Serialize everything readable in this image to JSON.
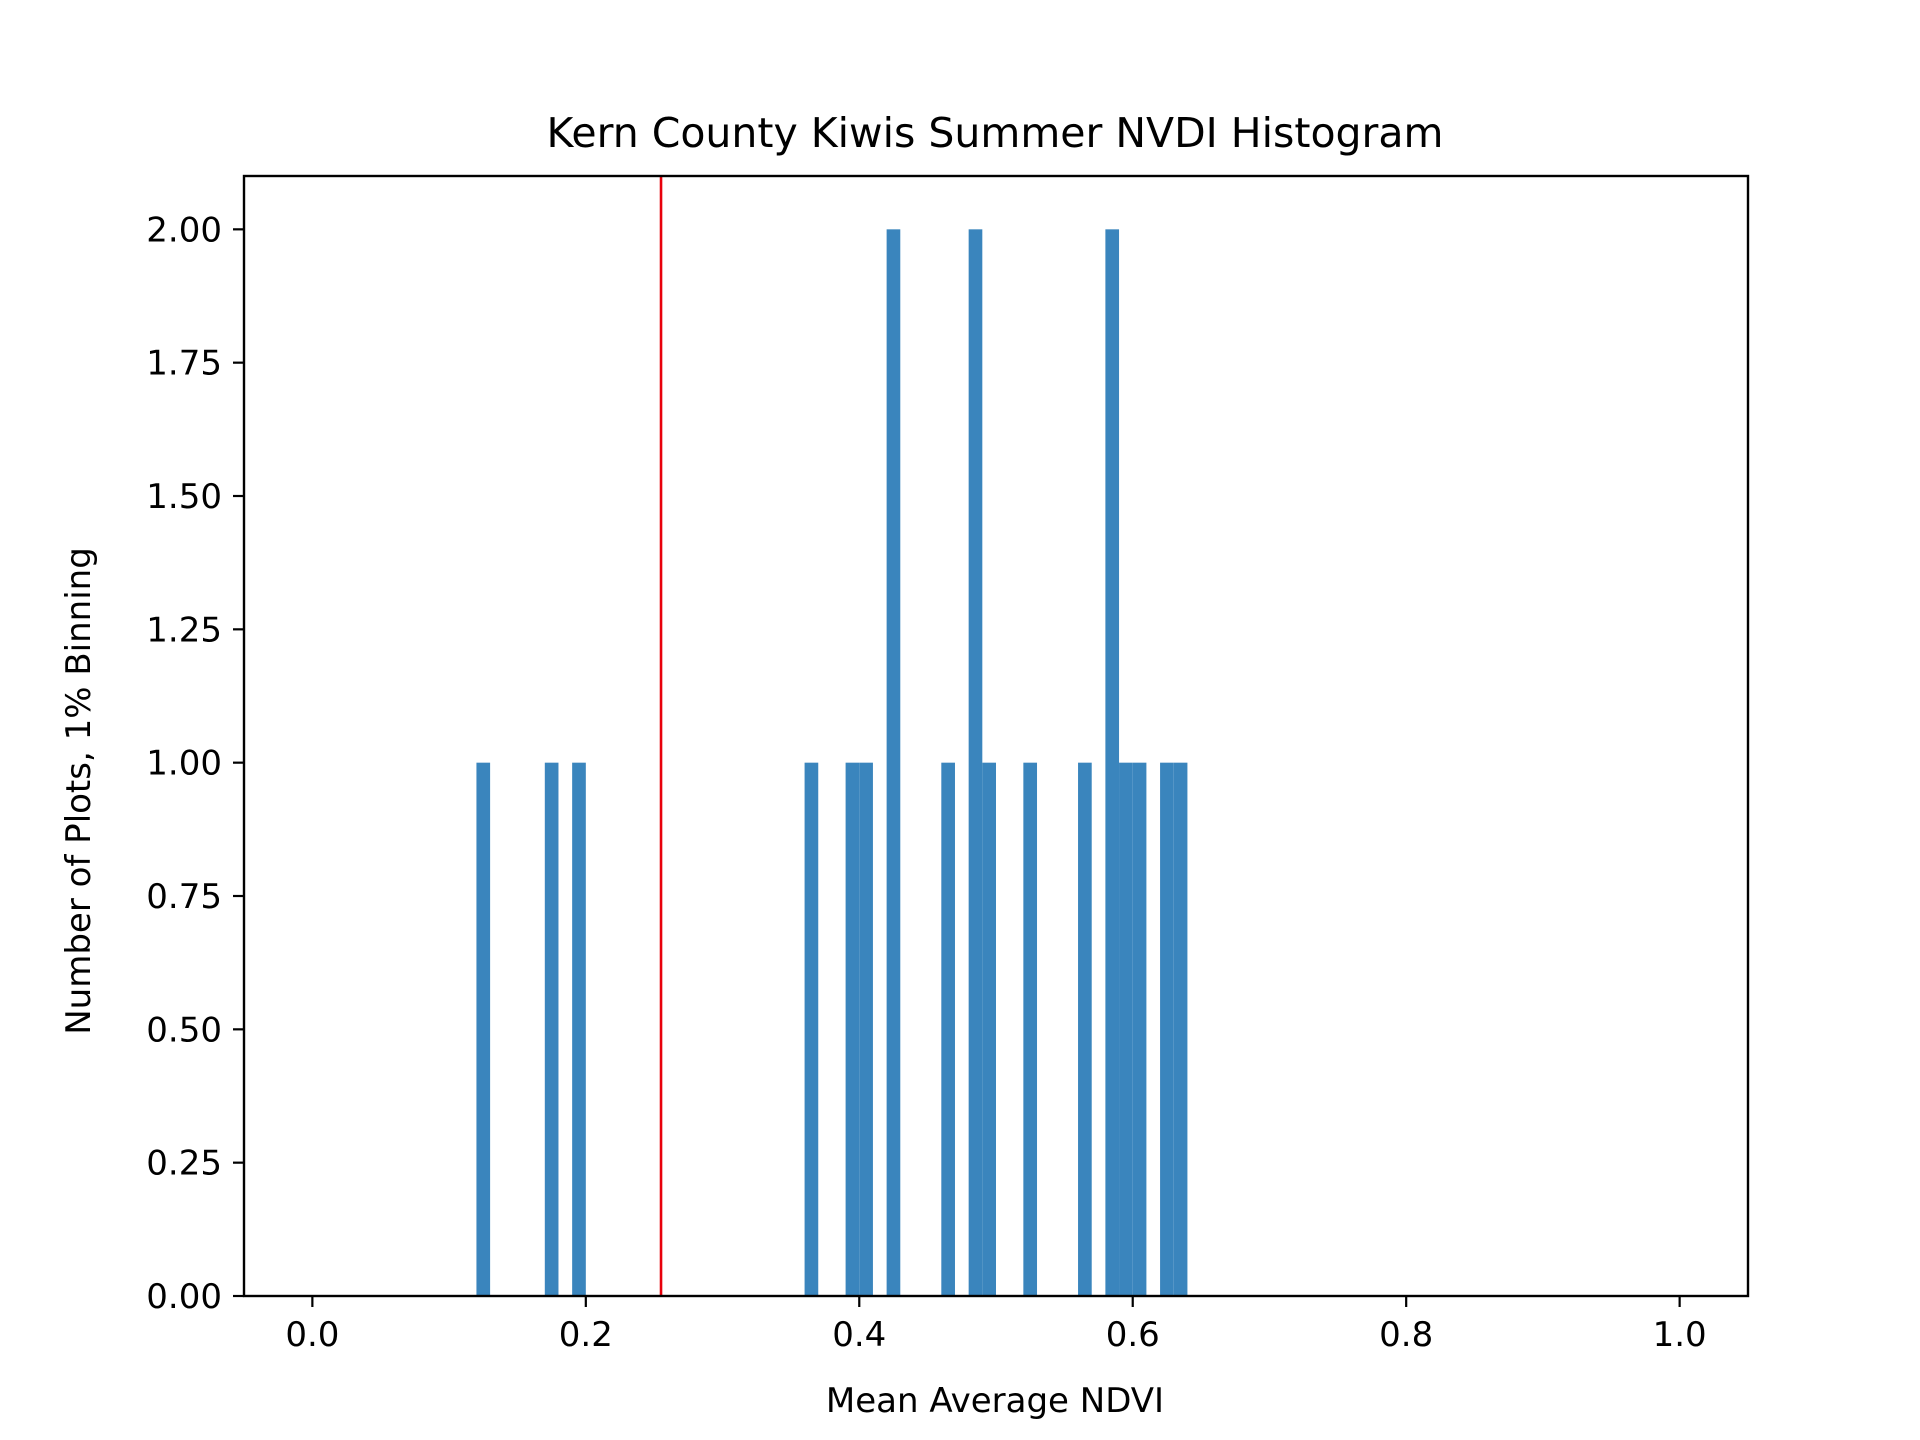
{
  "chart_data": {
    "type": "bar",
    "title": "Kern County Kiwis Summer NVDI Histogram",
    "xlabel": "Mean Average NDVI",
    "ylabel": "Number of Plots, 1% Binning",
    "xlim": [
      -0.05,
      1.05
    ],
    "ylim": [
      0,
      2.1
    ],
    "bin_width": 0.01,
    "x_ticks": [
      0.0,
      0.2,
      0.4,
      0.6,
      0.8,
      1.0
    ],
    "x_tick_labels": [
      "0.0",
      "0.2",
      "0.4",
      "0.6",
      "0.8",
      "1.0"
    ],
    "y_ticks": [
      0,
      0.25,
      0.5,
      0.75,
      1.0,
      1.25,
      1.5,
      1.75,
      2.0
    ],
    "y_tick_labels": [
      "0.00",
      "0.25",
      "0.50",
      "0.75",
      "1.00",
      "1.25",
      "1.50",
      "1.75",
      "2.00"
    ],
    "bins": [
      {
        "x": 0.12,
        "count": 1
      },
      {
        "x": 0.17,
        "count": 1
      },
      {
        "x": 0.19,
        "count": 1
      },
      {
        "x": 0.36,
        "count": 1
      },
      {
        "x": 0.39,
        "count": 1
      },
      {
        "x": 0.4,
        "count": 1
      },
      {
        "x": 0.42,
        "count": 2
      },
      {
        "x": 0.46,
        "count": 1
      },
      {
        "x": 0.48,
        "count": 2
      },
      {
        "x": 0.49,
        "count": 1
      },
      {
        "x": 0.52,
        "count": 1
      },
      {
        "x": 0.56,
        "count": 1
      },
      {
        "x": 0.58,
        "count": 2
      },
      {
        "x": 0.59,
        "count": 1
      },
      {
        "x": 0.6,
        "count": 1
      },
      {
        "x": 0.62,
        "count": 1
      },
      {
        "x": 0.63,
        "count": 1
      }
    ],
    "reference_line": {
      "x": 0.255,
      "color": "#e8000b"
    },
    "bar_color": "#3a85bd",
    "grid": false
  }
}
